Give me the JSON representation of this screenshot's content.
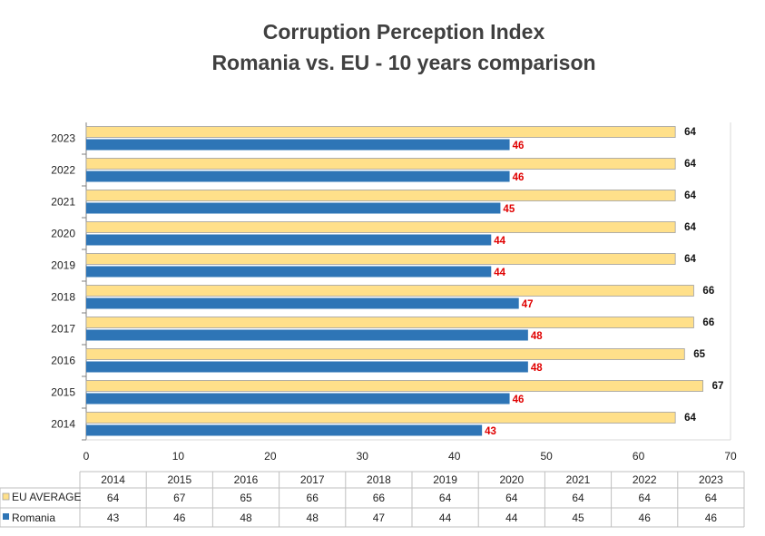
{
  "title_line1": "Corruption Perception Index",
  "title_line2": "Romania vs. EU - 10 years comparison",
  "colors": {
    "eu_fill": "#FFE08A",
    "eu_stroke": "#9E9E9E",
    "romania_fill": "#2E75B6",
    "romania_label": "#E00000",
    "eu_label": "#111111"
  },
  "chart_data": {
    "type": "bar",
    "orientation": "horizontal",
    "title": "Corruption Perception Index\nRomania vs. EU - 10 years comparison",
    "categories": [
      "2014",
      "2015",
      "2016",
      "2017",
      "2018",
      "2019",
      "2020",
      "2021",
      "2022",
      "2023"
    ],
    "series": [
      {
        "name": "EU AVERAGE",
        "values": [
          64,
          67,
          65,
          66,
          66,
          64,
          64,
          64,
          64,
          64
        ]
      },
      {
        "name": "Romania",
        "values": [
          43,
          46,
          48,
          48,
          47,
          44,
          44,
          45,
          46,
          46
        ]
      }
    ],
    "xlim": [
      0,
      70
    ],
    "xticks": [
      "0",
      "10",
      "20",
      "30",
      "40",
      "50",
      "60",
      "70"
    ],
    "data_labels": true,
    "grid": false,
    "legend": "data-table-below"
  }
}
